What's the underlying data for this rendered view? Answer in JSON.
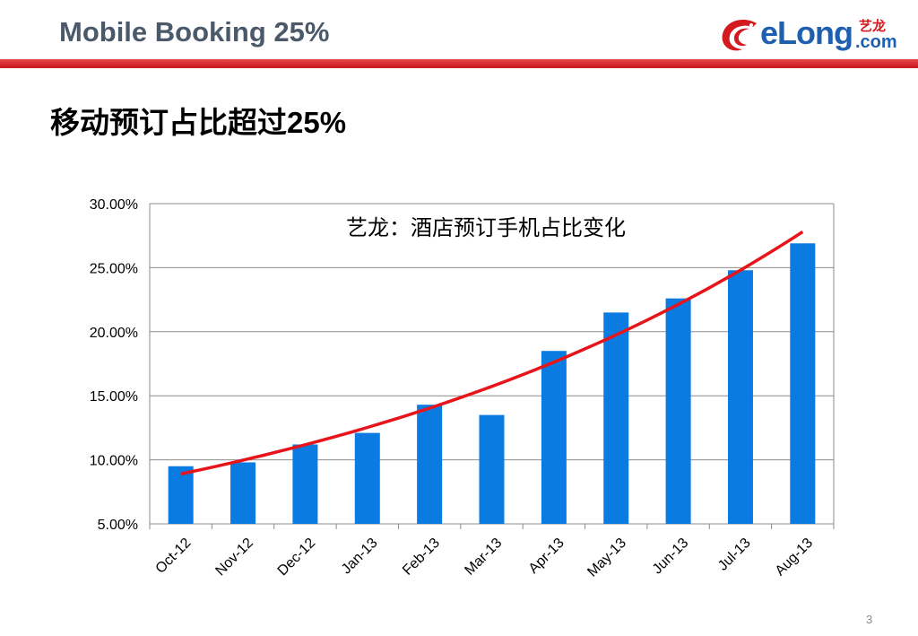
{
  "header": {
    "title": "Mobile Booking 25%",
    "logo_text": "eLong",
    "logo_cn": "艺龙",
    "logo_domain": ".com"
  },
  "subtitle": "移动预订占比超过25%",
  "page_number": "3",
  "colors": {
    "header_text": "#4b5a6b",
    "accent_red": "#c8161d",
    "bar_blue": "#0a7be0",
    "trend_red": "#e8141b"
  },
  "chart_data": {
    "type": "bar",
    "title": "艺龙：酒店预订手机占比变化",
    "categories": [
      "Oct-12",
      "Nov-12",
      "Dec-12",
      "Jan-13",
      "Feb-13",
      "Mar-13",
      "Apr-13",
      "May-13",
      "Jun-13",
      "Jul-13",
      "Aug-13"
    ],
    "values": [
      9.5,
      9.8,
      11.2,
      12.1,
      14.3,
      13.5,
      18.5,
      21.5,
      22.6,
      24.8,
      26.9
    ],
    "ylim": [
      5,
      30
    ],
    "yticks": [
      "5.00%",
      "10.00%",
      "15.00%",
      "20.00%",
      "25.00%",
      "30.00%"
    ],
    "trend_line": {
      "type": "exponential",
      "start": 8.9,
      "end": 27.8
    },
    "grid": true,
    "xlabel": "",
    "ylabel": ""
  }
}
